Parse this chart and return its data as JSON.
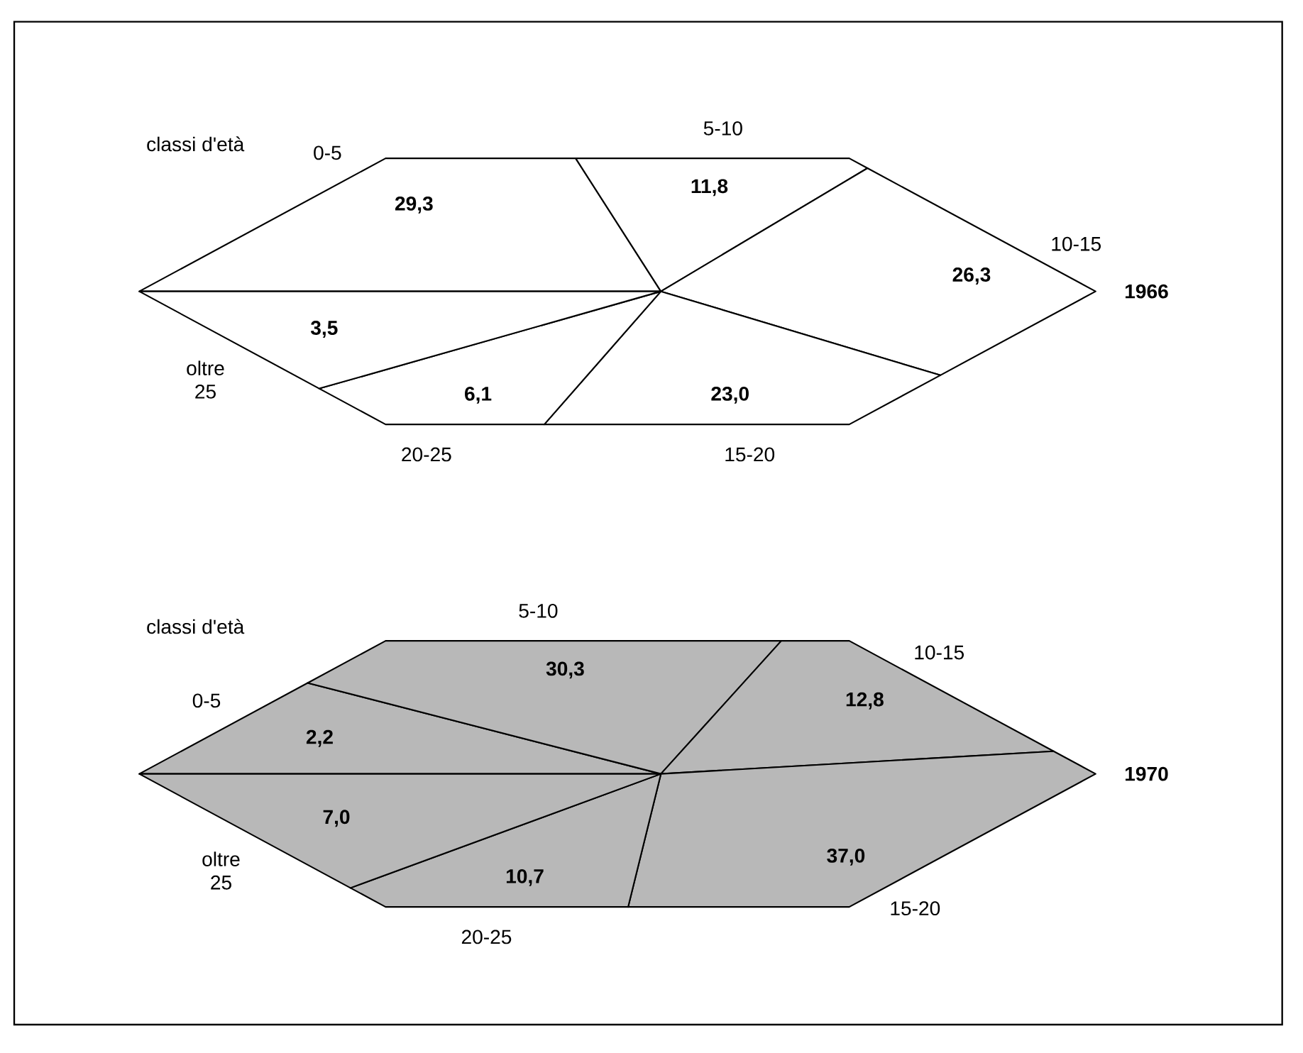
{
  "chart_data": [
    {
      "type": "other",
      "title": "classi d'età",
      "subtitle": "1966",
      "categories": [
        "0-5",
        "5-10",
        "10-15",
        "15-20",
        "20-25",
        "oltre 25"
      ],
      "values": [
        29.3,
        11.8,
        26.3,
        23.0,
        6.1,
        3.5
      ],
      "value_labels": [
        "29,3",
        "11,8",
        "26,3",
        "23,0",
        "6,1",
        "3,5"
      ],
      "color": "#ffffff"
    },
    {
      "type": "other",
      "title": "classi d'età",
      "subtitle": "1970",
      "categories": [
        "0-5",
        "5-10",
        "10-15",
        "15-20",
        "20-25",
        "oltre 25"
      ],
      "values": [
        2.2,
        30.3,
        12.8,
        37.0,
        10.7,
        7.0
      ],
      "value_labels": [
        "2,2",
        "30,3",
        "12,8",
        "37,0",
        "10,7",
        "7,0"
      ],
      "color": "#b8b8b8"
    }
  ]
}
